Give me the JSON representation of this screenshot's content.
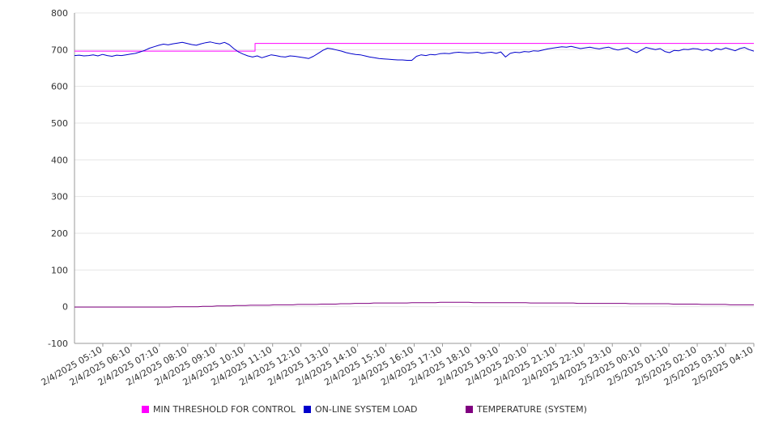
{
  "chart_data": {
    "type": "line",
    "x_labels": [
      "2/4/2025 05:10",
      "2/4/2025 06:10",
      "2/4/2025 07:10",
      "2/4/2025 08:10",
      "2/4/2025 09:10",
      "2/4/2025 10:10",
      "2/4/2025 11:10",
      "2/4/2025 12:10",
      "2/4/2025 13:10",
      "2/4/2025 14:10",
      "2/4/2025 15:10",
      "2/4/2025 16:10",
      "2/4/2025 17:10",
      "2/4/2025 18:10",
      "2/4/2025 19:10",
      "2/4/2025 20:10",
      "2/4/2025 21:10",
      "2/4/2025 22:10",
      "2/4/2025 23:10",
      "2/5/2025 00:10",
      "2/5/2025 01:10",
      "2/5/2025 02:10",
      "2/5/2025 03:10",
      "2/5/2025 04:10"
    ],
    "ylim": [
      -100,
      800
    ],
    "yticks": [
      -100,
      0,
      100,
      200,
      300,
      400,
      500,
      600,
      700,
      800
    ],
    "grid": true,
    "legend_position": "bottom",
    "series": [
      {
        "name": "MIN THRESHOLD FOR CONTROL",
        "color": "#ff00ff",
        "values": [
          696,
          696,
          696,
          696,
          696,
          696,
          696,
          696,
          696,
          696,
          696,
          696,
          696,
          696,
          696,
          696,
          696,
          696,
          696,
          696,
          696,
          696,
          696,
          696,
          696,
          696,
          696,
          696,
          696,
          696,
          696,
          696,
          696,
          696,
          696,
          696,
          696,
          696,
          717,
          717,
          717,
          717,
          717,
          717,
          717,
          717,
          717,
          717,
          717,
          717,
          717,
          717,
          717,
          717,
          717,
          717,
          717,
          717,
          717,
          717,
          717,
          717,
          717,
          717,
          717,
          717,
          717,
          717,
          717,
          717,
          717,
          717,
          717,
          717,
          717,
          717,
          717,
          717,
          717,
          717,
          717,
          717,
          717,
          717,
          717,
          717,
          717,
          717,
          717,
          717,
          717,
          717,
          717,
          717,
          717,
          717,
          717,
          717,
          717,
          717,
          717,
          717,
          717,
          717,
          717,
          717,
          717,
          717,
          717,
          717,
          717,
          717,
          717,
          717,
          717,
          717,
          717,
          717,
          717,
          717,
          717,
          717,
          717,
          717,
          717,
          717,
          717,
          717,
          717,
          717,
          717,
          717,
          717,
          717,
          717,
          717,
          717,
          717,
          717,
          717,
          717,
          717,
          717,
          717
        ]
      },
      {
        "name": "ON-LINE SYSTEM LOAD",
        "color": "#0000cc",
        "values": [
          684,
          685,
          683,
          684,
          686,
          683,
          687,
          684,
          682,
          685,
          684,
          686,
          688,
          690,
          694,
          698,
          704,
          708,
          712,
          715,
          713,
          716,
          718,
          720,
          717,
          714,
          712,
          716,
          719,
          721,
          718,
          716,
          720,
          714,
          703,
          694,
          688,
          683,
          680,
          683,
          678,
          682,
          686,
          684,
          681,
          680,
          683,
          682,
          680,
          678,
          676,
          682,
          690,
          698,
          704,
          702,
          699,
          696,
          692,
          689,
          687,
          686,
          683,
          680,
          678,
          676,
          675,
          674,
          673,
          672,
          672,
          671,
          671,
          682,
          686,
          684,
          687,
          686,
          689,
          690,
          689,
          692,
          693,
          692,
          691,
          692,
          693,
          690,
          692,
          693,
          690,
          694,
          680,
          690,
          693,
          692,
          695,
          694,
          697,
          696,
          699,
          702,
          704,
          706,
          708,
          707,
          709,
          706,
          703,
          705,
          707,
          704,
          702,
          705,
          707,
          702,
          699,
          702,
          705,
          697,
          692,
          699,
          706,
          703,
          700,
          703,
          695,
          692,
          698,
          697,
          701,
          700,
          703,
          702,
          698,
          701,
          696,
          703,
          700,
          705,
          701,
          697,
          703,
          706,
          700,
          696
        ]
      },
      {
        "name": "TEMPERATURE (SYSTEM)",
        "color": "#800080",
        "values": [
          -1,
          -1,
          -1,
          -1,
          -1,
          -1,
          -1,
          -1,
          -1,
          -1,
          -1,
          -1,
          -1,
          -1,
          -1,
          -1,
          -1,
          -1,
          -1,
          -1,
          -1,
          0,
          0,
          0,
          0,
          0,
          0,
          1,
          1,
          1,
          2,
          2,
          2,
          2,
          3,
          3,
          3,
          4,
          4,
          4,
          4,
          4,
          5,
          5,
          5,
          5,
          5,
          6,
          6,
          6,
          6,
          6,
          7,
          7,
          7,
          7,
          8,
          8,
          8,
          9,
          9,
          9,
          9,
          10,
          10,
          10,
          10,
          10,
          10,
          10,
          10,
          11,
          11,
          11,
          11,
          11,
          11,
          12,
          12,
          12,
          12,
          12,
          12,
          12,
          11,
          11,
          11,
          11,
          11,
          11,
          11,
          11,
          11,
          11,
          11,
          11,
          10,
          10,
          10,
          10,
          10,
          10,
          10,
          10,
          10,
          10,
          9,
          9,
          9,
          9,
          9,
          9,
          9,
          9,
          9,
          9,
          9,
          8,
          8,
          8,
          8,
          8,
          8,
          8,
          8,
          8,
          7,
          7,
          7,
          7,
          7,
          7,
          6,
          6,
          6,
          6,
          6,
          6,
          5,
          5,
          5,
          5,
          5,
          5
        ]
      }
    ]
  }
}
